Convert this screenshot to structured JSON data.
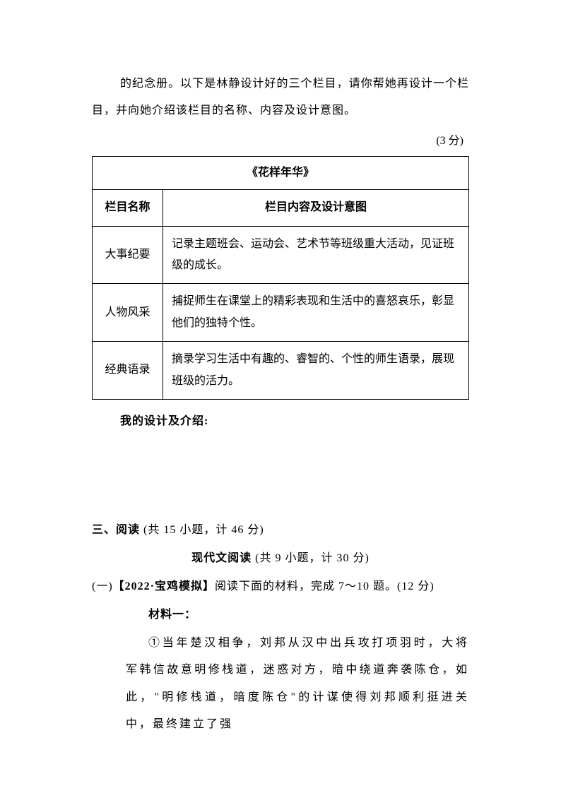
{
  "intro": {
    "text": "的纪念册。以下是林静设计好的三个栏目，请你帮她再设计一个栏目，并向她介绍该栏目的名称、内容及设计意图。",
    "points": "(3 分)"
  },
  "table": {
    "title": "《花样年华》",
    "header_col1": "栏目名称",
    "header_col2": "栏目内容及设计意图",
    "rows": [
      {
        "name": "大事纪要",
        "content": "记录主题班会、运动会、艺术节等班级重大活动，见证班级的成长。"
      },
      {
        "name": "人物风采",
        "content": "捕捉师生在课堂上的精彩表现和生活中的喜怒哀乐，彰显他们的独特个性。"
      },
      {
        "name": "经典语录",
        "content": "摘录学习生活中有趣的、睿智的、个性的师生语录，展现班级的活力。"
      }
    ]
  },
  "my_design_label": "我的设计及介绍:",
  "section_three": {
    "title": "三、阅读",
    "info": " (共 15 小题，计 46 分)"
  },
  "modern_reading": {
    "title": "现代文阅读",
    "info": " (共 9 小题，计 30 分)"
  },
  "subsection": {
    "prefix": "(一)",
    "tag": "【2022·宝鸡模拟】",
    "text": "阅读下面的材料，完成 7～10 题。(12 分)"
  },
  "material_label": "材料一：",
  "passage": "①当年楚汉相争，刘邦从汉中出兵攻打项羽时，大将军韩信故意明修栈道，迷惑对方，暗中绕道奔袭陈仓，如此，\"明修栈道，暗度陈仓\"的计谋使得刘邦顺利挺进关中，最终建立了强"
}
